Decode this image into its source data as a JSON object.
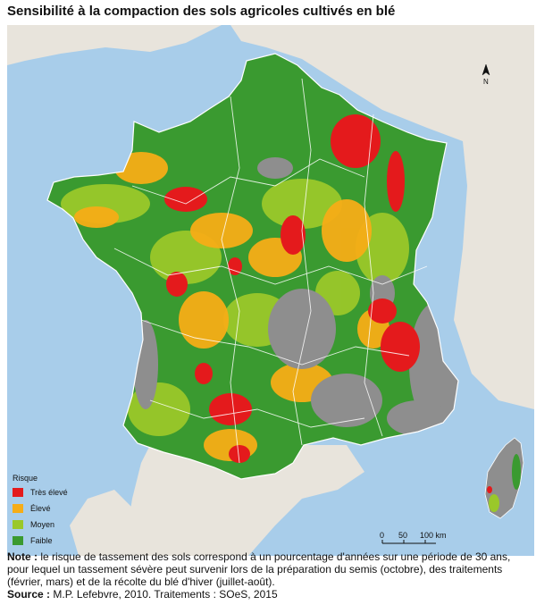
{
  "title": "Sensibilité à la compaction des sols agricoles cultivés en blé",
  "colors": {
    "sea": "#a8cdea",
    "neighbor_land": "#e8e4dc",
    "non_agricultural": "#8e8e8e",
    "border": "#ffffff"
  },
  "legend": {
    "title": "Risque",
    "items": [
      {
        "label": "Très élevé",
        "color": "#e41a1c"
      },
      {
        "label": "Élevé",
        "color": "#f6ad17"
      },
      {
        "label": "Moyen",
        "color": "#9ac82a"
      },
      {
        "label": "Faible",
        "color": "#3a9a30"
      }
    ]
  },
  "north_arrow": {
    "label": "N",
    "icon": "north-arrow-icon"
  },
  "scale_bar": {
    "labels": [
      "0",
      "50",
      "100 km"
    ]
  },
  "note": {
    "label": "Note :",
    "text": "le risque de tassement des sols correspond à un pourcentage d'années sur une période de 30 ans, pour lequel un tassement sévère peut survenir lors de la préparation du semis (octobre), des traitements (février, mars) et de la récolte du blé d'hiver (juillet-août)."
  },
  "source": {
    "label": "Source :",
    "text": "M.P. Lefebvre, 2010. Traitements : SOeS, 2015"
  }
}
